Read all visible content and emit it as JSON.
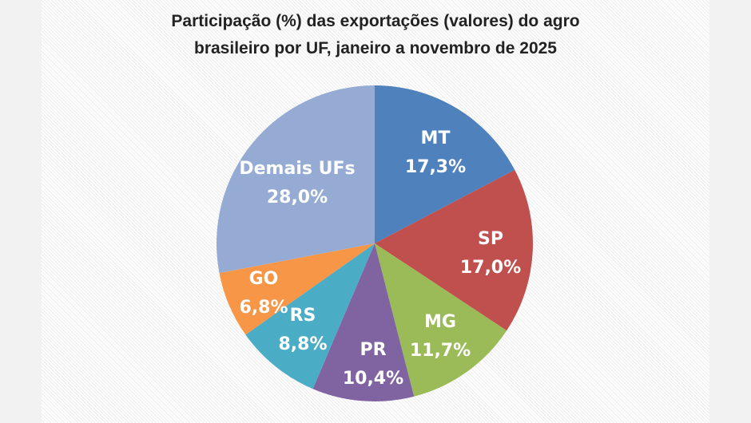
{
  "chart_data": {
    "type": "pie",
    "title_lines": [
      "Participação (%) das exportações (valores) do agro",
      "brasileiro por UF,  janeiro a novembro de 2025"
    ],
    "start": "12 o'clock, clockwise",
    "slices": [
      {
        "label": "MT",
        "value": 17.3,
        "value_label": "17,3%",
        "color": "#4f81bd"
      },
      {
        "label": "SP",
        "value": 17.0,
        "value_label": "17,0%",
        "color": "#c0504d"
      },
      {
        "label": "MG",
        "value": 11.7,
        "value_label": "11,7%",
        "color": "#9bbb59"
      },
      {
        "label": "PR",
        "value": 10.4,
        "value_label": "10,4%",
        "color": "#8064a2"
      },
      {
        "label": "RS",
        "value": 8.8,
        "value_label": "8,8%",
        "color": "#4bacc6"
      },
      {
        "label": "GO",
        "value": 6.8,
        "value_label": "6,8%",
        "color": "#f79646"
      },
      {
        "label": "Demais UFs",
        "value": 28.0,
        "value_label": "28,0%",
        "color": "#95abd3"
      }
    ]
  }
}
